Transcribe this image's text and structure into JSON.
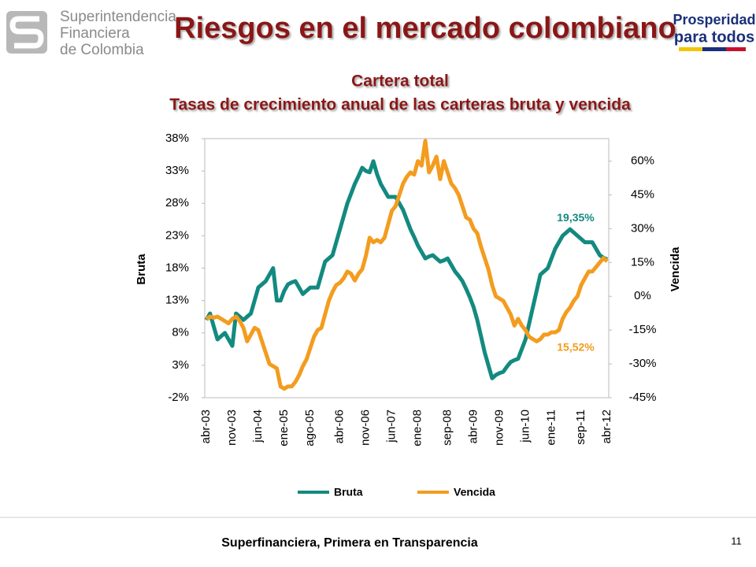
{
  "header": {
    "org": [
      "Superintendencia",
      "Financiera",
      "de Colombia"
    ],
    "title": "Riesgos en el mercado colombiano",
    "logo": [
      "Prosperidad",
      "para todos"
    ]
  },
  "footer": {
    "text": "Superfinanciera, Primera en Transparencia",
    "page": "11"
  },
  "chart_data": {
    "type": "line",
    "title": "Cartera total",
    "subtitle": "Tasas de crecimiento anual de las carteras bruta y vencida",
    "y_label": "Bruta",
    "y2_label": "Vencida",
    "categories": [
      "abr-03",
      null,
      null,
      null,
      null,
      null,
      null,
      "nov-03",
      null,
      null,
      null,
      null,
      null,
      null,
      "jun-04",
      null,
      null,
      null,
      null,
      null,
      null,
      "ene-05",
      null,
      null,
      null,
      null,
      null,
      null,
      "ago-05",
      null,
      null,
      null,
      null,
      null,
      null,
      null,
      "abr-06",
      null,
      null,
      null,
      null,
      null,
      null,
      "nov-06",
      null,
      null,
      null,
      null,
      null,
      null,
      "jun-07",
      null,
      null,
      null,
      null,
      null,
      null,
      "ene-08",
      null,
      null,
      null,
      null,
      null,
      null,
      null,
      "sep-08",
      null,
      null,
      null,
      null,
      null,
      null,
      "abr-09",
      null,
      null,
      null,
      null,
      null,
      null,
      "nov-09",
      null,
      null,
      null,
      null,
      null,
      null,
      "jun-10",
      null,
      null,
      null,
      null,
      null,
      null,
      "ene-11",
      null,
      null,
      null,
      null,
      null,
      null,
      null,
      "sep-11",
      null,
      null,
      null,
      null,
      null,
      null,
      "abr-12"
    ],
    "series": [
      {
        "name": "Bruta",
        "color": "#138a80",
        "axis": "y",
        "values": [
          10,
          11,
          9,
          7,
          7.5,
          8,
          7,
          6,
          11,
          10.5,
          10,
          10.5,
          11,
          13,
          15,
          15.5,
          16,
          17,
          18,
          13,
          13,
          14.5,
          15.5,
          15.8,
          16,
          15,
          14,
          14.5,
          15,
          15,
          15,
          17,
          19,
          19.5,
          20,
          22,
          24,
          26,
          28,
          29.5,
          31,
          32.2,
          33.5,
          33,
          32.8,
          34.5,
          32.5,
          31,
          30,
          29,
          29,
          29,
          28,
          27,
          25.5,
          24,
          22.8,
          21.5,
          20.5,
          19.5,
          19.8,
          20,
          19.5,
          19,
          19.2,
          19.5,
          18.5,
          17.5,
          16.8,
          16,
          14.8,
          13.5,
          12,
          10,
          7.5,
          5,
          3,
          1,
          1.5,
          1.8,
          2,
          2.8,
          3.5,
          3.8,
          4,
          5.5,
          7,
          9.5,
          12,
          14.5,
          17,
          17.5,
          18,
          19.5,
          21,
          22,
          23,
          23.5,
          24,
          23.5,
          23,
          22.5,
          22,
          22,
          22,
          21,
          20,
          19.6,
          19.35
        ],
        "value_labels": [
          null,
          null,
          null,
          null,
          null,
          null,
          null,
          null,
          null,
          null,
          null,
          null,
          null,
          null,
          null,
          null,
          null,
          null,
          null,
          null,
          null,
          null,
          null,
          null,
          null,
          null,
          null,
          null,
          null,
          null,
          null,
          null,
          null,
          null,
          null,
          null,
          null,
          null,
          null,
          null,
          null,
          null,
          null,
          null,
          null,
          null,
          null,
          null,
          null,
          null,
          null,
          null,
          null,
          null,
          null,
          null,
          null,
          null,
          null,
          null,
          null,
          null,
          null,
          null,
          null,
          null,
          null,
          null,
          null,
          null,
          null,
          null,
          null,
          null,
          null,
          null,
          null,
          null,
          null,
          null,
          null,
          null,
          null,
          null,
          null,
          null,
          null,
          null,
          null,
          null,
          null,
          null,
          null,
          null,
          null,
          null,
          null,
          null,
          null,
          null,
          null,
          null,
          null,
          null,
          null,
          null,
          null,
          null,
          "19,35%"
        ]
      },
      {
        "name": "Vencida",
        "color": "#f39c1f",
        "axis": "y2",
        "values": [
          -10,
          -9,
          -9.5,
          -9,
          -10,
          -11,
          -12,
          -10,
          -9,
          -11,
          -14,
          -20,
          -17,
          -14,
          -15,
          -20,
          -25,
          -30,
          -31,
          -32,
          -40,
          -41,
          -40,
          -40,
          -38,
          -35,
          -31,
          -28,
          -23,
          -18,
          -15,
          -14,
          -8,
          -2,
          2,
          5,
          6,
          8,
          11,
          10,
          7,
          10,
          12,
          18,
          26,
          24,
          25,
          24,
          26,
          32,
          38,
          40,
          45,
          50,
          53,
          55,
          54,
          60,
          58,
          69,
          55,
          58,
          62,
          52,
          60,
          55,
          50,
          48,
          45,
          40,
          35,
          34,
          30,
          28,
          22,
          17,
          12,
          5,
          0,
          -1,
          -2,
          -5,
          -8,
          -13,
          -10,
          -13,
          -15,
          -18,
          -19,
          -20,
          -19,
          -17,
          -17,
          -16,
          -16,
          -15,
          -10,
          -7,
          -5,
          -2,
          0,
          5,
          8,
          11,
          11,
          13,
          15,
          17,
          15.52
        ],
        "value_labels": [
          null,
          null,
          null,
          null,
          null,
          null,
          null,
          null,
          null,
          null,
          null,
          null,
          null,
          null,
          null,
          null,
          null,
          null,
          null,
          null,
          null,
          null,
          null,
          null,
          null,
          null,
          null,
          null,
          null,
          null,
          null,
          null,
          null,
          null,
          null,
          null,
          null,
          null,
          null,
          null,
          null,
          null,
          null,
          null,
          null,
          null,
          null,
          null,
          null,
          null,
          null,
          null,
          null,
          null,
          null,
          null,
          null,
          null,
          null,
          null,
          null,
          null,
          null,
          null,
          null,
          null,
          null,
          null,
          null,
          null,
          null,
          null,
          null,
          null,
          null,
          null,
          null,
          null,
          null,
          null,
          null,
          null,
          null,
          null,
          null,
          null,
          null,
          null,
          null,
          null,
          null,
          null,
          null,
          null,
          null,
          null,
          null,
          null,
          null,
          null,
          null,
          null,
          null,
          null,
          null,
          null,
          null,
          null,
          "15,52%"
        ]
      }
    ],
    "ylim": [
      -2,
      38
    ],
    "yticks": [
      {
        "value": -2,
        "label": "-2%"
      },
      {
        "value": 3,
        "label": "3%"
      },
      {
        "value": 8,
        "label": "8%"
      },
      {
        "value": 13,
        "label": "13%"
      },
      {
        "value": 18,
        "label": "18%"
      },
      {
        "value": 23,
        "label": "23%"
      },
      {
        "value": 28,
        "label": "28%"
      },
      {
        "value": 33,
        "label": "33%"
      },
      {
        "value": 38,
        "label": "38%"
      }
    ],
    "y2lim": [
      -45,
      70
    ],
    "y2ticks": [
      {
        "value": -45,
        "label": "-45%"
      },
      {
        "value": -30,
        "label": "-30%"
      },
      {
        "value": -15,
        "label": "-15%"
      },
      {
        "value": 0,
        "label": "0%"
      },
      {
        "value": 15,
        "label": "15%"
      },
      {
        "value": 30,
        "label": "30%"
      },
      {
        "value": 45,
        "label": "45%"
      },
      {
        "value": 60,
        "label": "60%"
      }
    ],
    "legend": "bottom",
    "grid": false
  }
}
